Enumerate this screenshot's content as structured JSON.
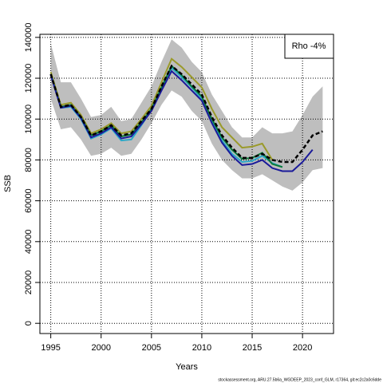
{
  "chart_data": {
    "type": "line",
    "xlabel": "Years",
    "ylabel": "SSB",
    "annotation": "Rho -4%",
    "footer": "stockassessment.org, ARU.27.5b6a_WGDEEP_2023_conf_GLM, r17364, git:ec2c2a0c6dde",
    "x": [
      1995,
      1996,
      1997,
      1998,
      1999,
      2000,
      2001,
      2002,
      2003,
      2004,
      2005,
      2006,
      2007,
      2008,
      2009,
      2010,
      2011,
      2012,
      2013,
      2014,
      2015,
      2016,
      2017,
      2018,
      2019,
      2020,
      2021,
      2022
    ],
    "xlim": [
      1993.92,
      2023.08
    ],
    "xticks": [
      1995,
      2000,
      2005,
      2010,
      2015,
      2020
    ],
    "ylim": [
      -5000,
      141500
    ],
    "yticks": [
      0,
      20000,
      40000,
      60000,
      80000,
      100000,
      120000,
      140000
    ],
    "grid": true,
    "band": {
      "color": "#bebebe",
      "upper": [
        137000,
        118000,
        118000,
        110000,
        101000,
        102000,
        106000,
        99000,
        100000,
        108000,
        116000,
        128000,
        139000,
        135000,
        128000,
        123000,
        112000,
        104000,
        96000,
        91000,
        91000,
        96000,
        93000,
        93000,
        94000,
        102000,
        111000,
        116000
      ],
      "lower": [
        110000,
        95000,
        96000,
        90000,
        82000,
        83000,
        86000,
        82000,
        83000,
        90000,
        98000,
        107000,
        114000,
        111000,
        104000,
        99000,
        88000,
        80000,
        75000,
        71000,
        71000,
        73000,
        70000,
        67000,
        65000,
        69000,
        75000,
        76000
      ]
    },
    "series": [
      {
        "color": "#9a9a2a",
        "values": [
          123000,
          107000,
          108000,
          102000,
          93000,
          95000,
          98000,
          93000,
          94000,
          100000,
          106500,
          118000,
          129500,
          125500,
          120500,
          115500,
          105000,
          96000,
          91000,
          86000,
          86500,
          88000,
          80000,
          null,
          null,
          null,
          null,
          null
        ]
      },
      {
        "color": "#2aa8c8",
        "values": [
          122000,
          105500,
          106000,
          100000,
          90500,
          92500,
          95500,
          89500,
          90000,
          97000,
          104500,
          115000,
          125000,
          120500,
          115500,
          110000,
          99000,
          89500,
          83000,
          79000,
          79500,
          82000,
          78500,
          76500,
          null,
          null,
          null,
          null
        ]
      },
      {
        "color": "#0a7a3a",
        "values": [
          122000,
          106000,
          107000,
          101000,
          92000,
          94000,
          97000,
          91500,
          92500,
          98500,
          105000,
          115500,
          126000,
          121500,
          116000,
          111000,
          100000,
          91000,
          85000,
          80500,
          81000,
          83500,
          78000,
          76500,
          null,
          null,
          null,
          null
        ]
      },
      {
        "color": "#1a1a9a",
        "values": [
          121500,
          105500,
          106500,
          100500,
          91000,
          93000,
          96000,
          90500,
          91500,
          97500,
          104000,
          114000,
          123500,
          119000,
          114000,
          109000,
          98000,
          88500,
          82000,
          77500,
          78000,
          80000,
          76000,
          74500,
          74500,
          79000,
          85000,
          null
        ]
      },
      {
        "color": "#000000",
        "dashed": true,
        "values": [
          122000,
          106000,
          107000,
          101000,
          92000,
          94000,
          97000,
          92000,
          93000,
          99000,
          105000,
          116000,
          126000,
          122000,
          117000,
          112000,
          101000,
          92000,
          86000,
          81000,
          81000,
          83000,
          80000,
          79000,
          79000,
          85000,
          92000,
          94000
        ]
      }
    ]
  }
}
